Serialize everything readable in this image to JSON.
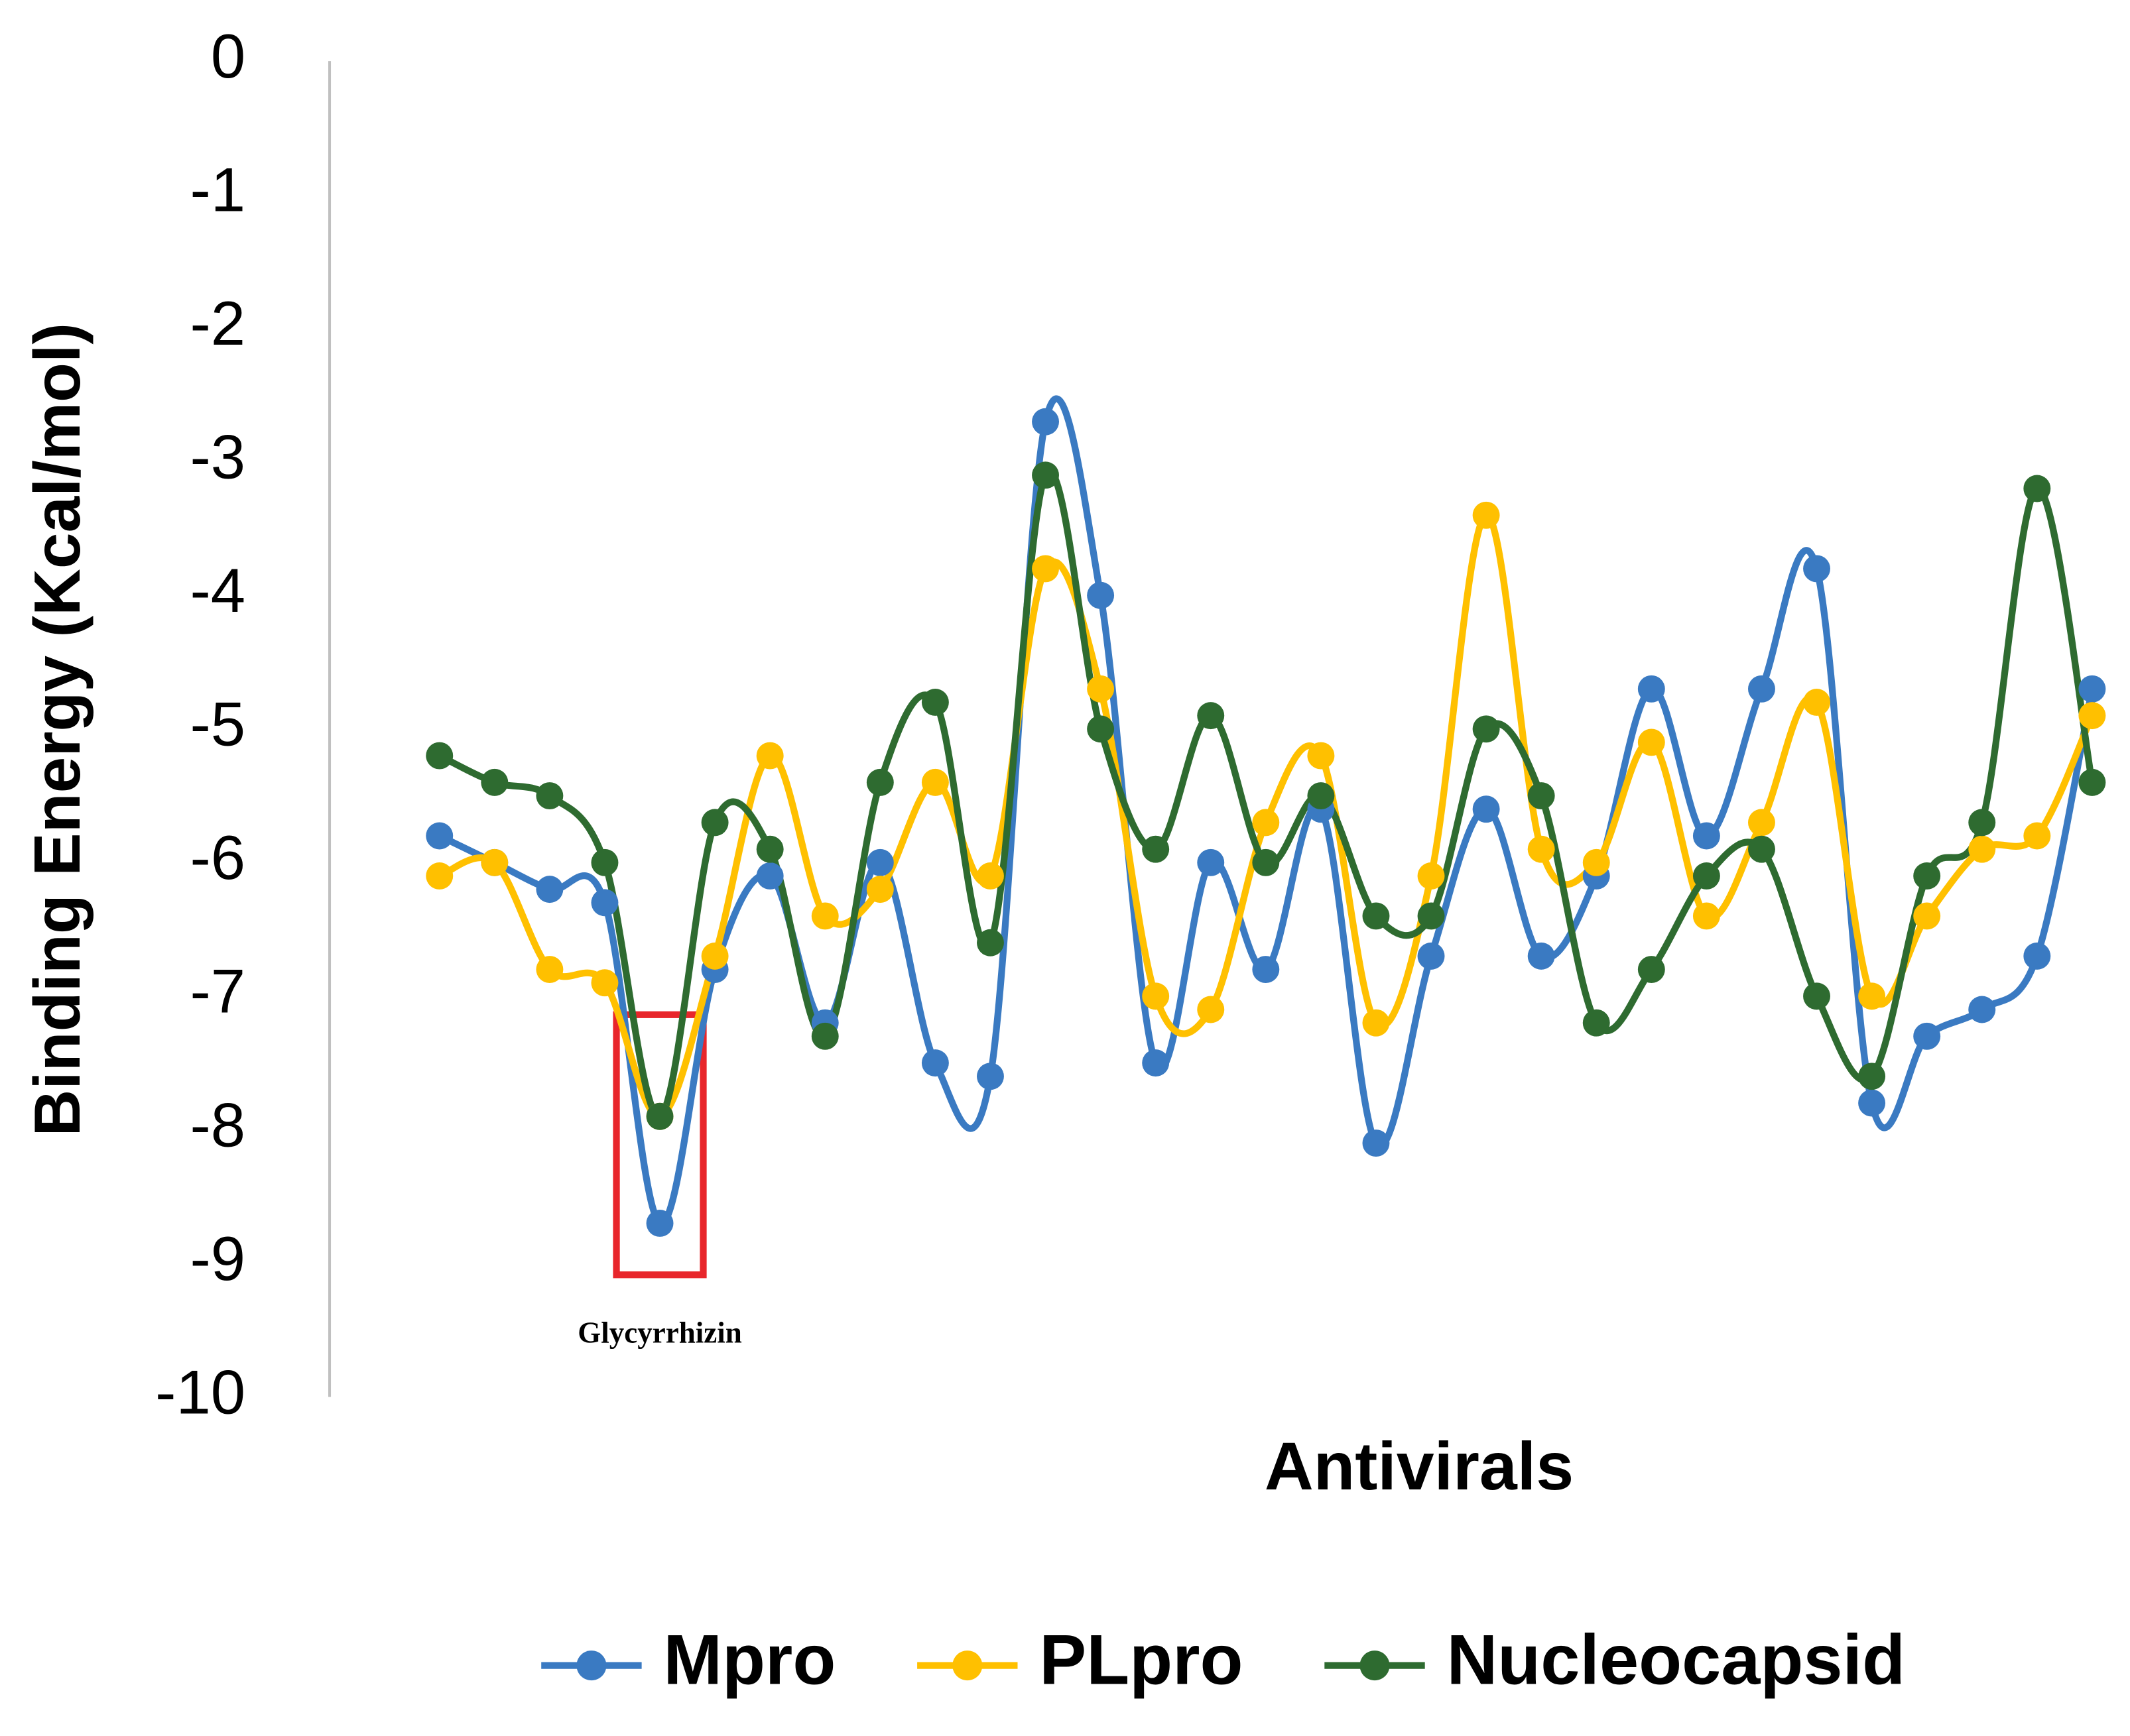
{
  "chart_data": {
    "type": "line",
    "y_label": "Binding Energy (Kcal/mol)",
    "x_label": "Antivirals",
    "categories": [
      null,
      null,
      null,
      null,
      "Glycyrrhizin",
      null,
      null,
      null,
      null,
      null,
      null,
      null,
      null,
      null,
      null,
      null,
      null,
      null,
      null,
      null,
      null,
      null,
      null,
      null,
      null,
      null,
      null,
      null,
      null,
      null,
      null
    ],
    "series": [
      {
        "name": "Mpro",
        "color": "#3a7ac2",
        "values": [
          -5.8,
          -6.0,
          -6.2,
          -6.3,
          -8.7,
          -6.8,
          -6.1,
          -7.2,
          -6.0,
          -7.5,
          -7.6,
          -2.7,
          -4.0,
          -7.5,
          -6.0,
          -6.8,
          -5.6,
          -8.1,
          -6.7,
          -5.6,
          -6.7,
          -6.1,
          -4.7,
          -5.8,
          -4.7,
          -3.8,
          -7.8,
          -7.3,
          -7.1,
          -6.7,
          -4.7
        ]
      },
      {
        "name": "PLpro",
        "color": "#ffc000",
        "values": [
          -6.1,
          -6.0,
          -6.8,
          -6.9,
          -7.9,
          -6.7,
          -5.2,
          -6.4,
          -6.2,
          -5.4,
          -6.1,
          -3.8,
          -4.7,
          -7.0,
          -7.1,
          -5.7,
          -5.2,
          -7.2,
          -6.1,
          -3.4,
          -5.9,
          -6.0,
          -5.1,
          -6.4,
          -5.7,
          -4.8,
          -7.0,
          -6.4,
          -5.9,
          -5.8,
          -4.9
        ]
      },
      {
        "name": "Nucleocapsid",
        "color": "#2e6b30",
        "values": [
          -5.2,
          -5.4,
          -5.5,
          -6.0,
          -7.9,
          -5.7,
          -5.9,
          -7.3,
          -5.4,
          -4.8,
          -6.6,
          -3.1,
          -5.0,
          -5.9,
          -4.9,
          -6.0,
          -5.5,
          -6.4,
          -6.4,
          -5.0,
          -5.5,
          -7.2,
          -6.8,
          -6.1,
          -5.9,
          -7.0,
          -7.6,
          -6.1,
          -5.7,
          -3.2,
          -5.4
        ]
      }
    ],
    "ylim": [
      -10,
      0
    ],
    "yticks": [
      0,
      -1,
      -2,
      -3,
      -4,
      -5,
      -6,
      -7,
      -8,
      -9,
      -10
    ],
    "highlight_color": "#e8262b",
    "legend": "bottom",
    "smooth": true
  }
}
